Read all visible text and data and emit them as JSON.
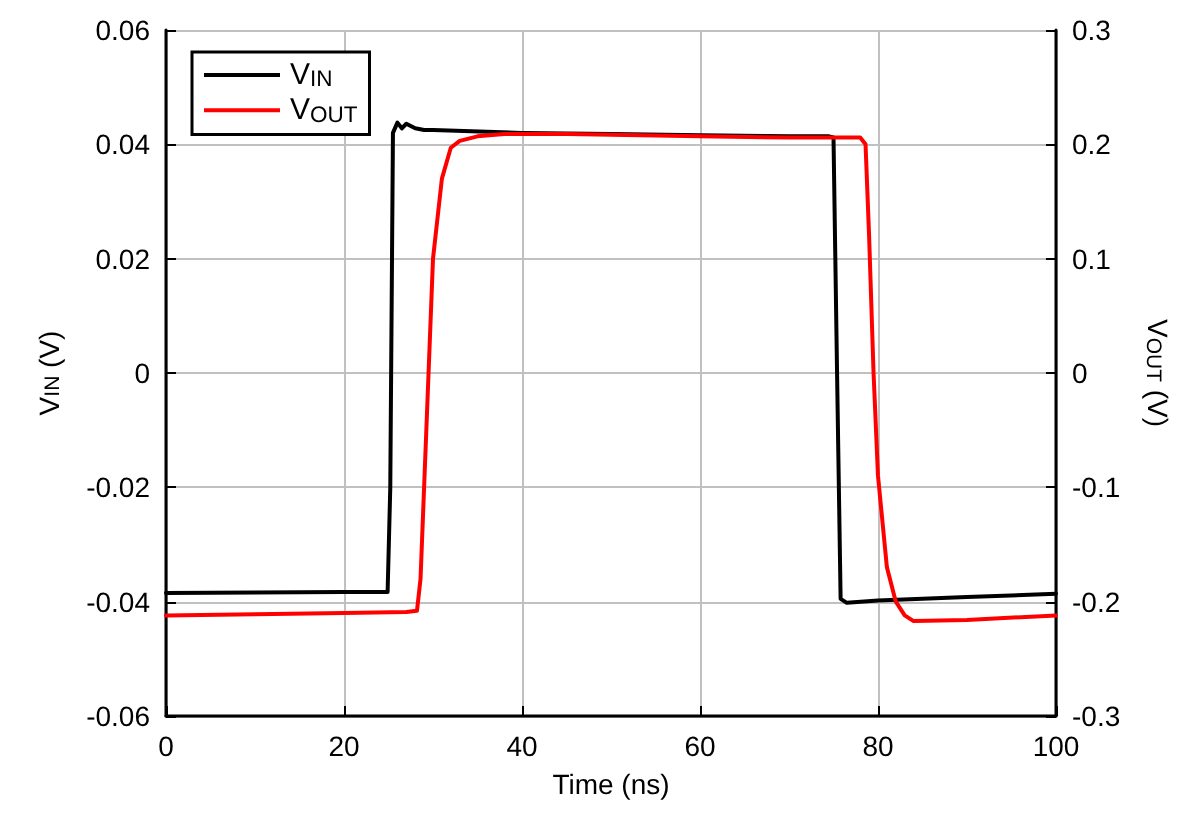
{
  "chart_data": {
    "type": "line",
    "xlabel": "Time (ns)",
    "ylabel": "V$_{IN}$ (V)",
    "y2label": "V$_{OUT}$ (V)",
    "xlim": [
      0,
      100
    ],
    "xticks": [
      0,
      20,
      40,
      60,
      80,
      100
    ],
    "ylim": [
      -0.06,
      0.06
    ],
    "yticks": [
      -0.06,
      -0.04,
      -0.02,
      0,
      0.02,
      0.04,
      0.06
    ],
    "y2lim": [
      -0.3,
      0.3
    ],
    "y2ticks": [
      -0.3,
      -0.2,
      -0.1,
      0,
      0.1,
      0.2,
      0.3
    ],
    "grid": true,
    "legend": "top left",
    "marker": "none",
    "line_style": "solid",
    "series": [
      {
        "name": "V$_{IN}$",
        "color": "#000000",
        "x": [
          0,
          10,
          20,
          24.9,
          25.2,
          25.5,
          26,
          26.5,
          27,
          27.5,
          28,
          29,
          30,
          40,
          50,
          60,
          70,
          74.5,
          75,
          75.4,
          75.8,
          76.5,
          80,
          90,
          100
        ],
        "values": [
          -0.0385,
          -0.0384,
          -0.0383,
          -0.0383,
          -0.02,
          0.042,
          0.0438,
          0.0428,
          0.0436,
          0.0432,
          0.0428,
          0.0425,
          0.0425,
          0.042,
          0.0418,
          0.0416,
          0.0414,
          0.0414,
          0.0412,
          0.0,
          -0.0395,
          -0.0402,
          -0.0398,
          -0.0392,
          -0.0386
        ]
      },
      {
        "name": "V$_{OUT}$",
        "color": "#ff0000",
        "axis": "y2",
        "x": [
          0,
          10,
          20,
          27,
          28.2,
          28.6,
          29,
          29.5,
          30,
          31,
          32,
          33,
          35,
          38,
          45,
          60,
          70,
          78,
          78.6,
          79,
          79.5,
          80,
          81,
          82,
          83,
          84,
          90,
          100
        ],
        "values": [
          -0.212,
          -0.211,
          -0.21,
          -0.209,
          -0.208,
          -0.18,
          -0.1,
          0.0,
          0.1,
          0.17,
          0.197,
          0.203,
          0.207,
          0.209,
          0.209,
          0.207,
          0.206,
          0.206,
          0.2,
          0.12,
          0.0,
          -0.09,
          -0.17,
          -0.2,
          -0.212,
          -0.217,
          -0.216,
          -0.212
        ]
      }
    ]
  }
}
